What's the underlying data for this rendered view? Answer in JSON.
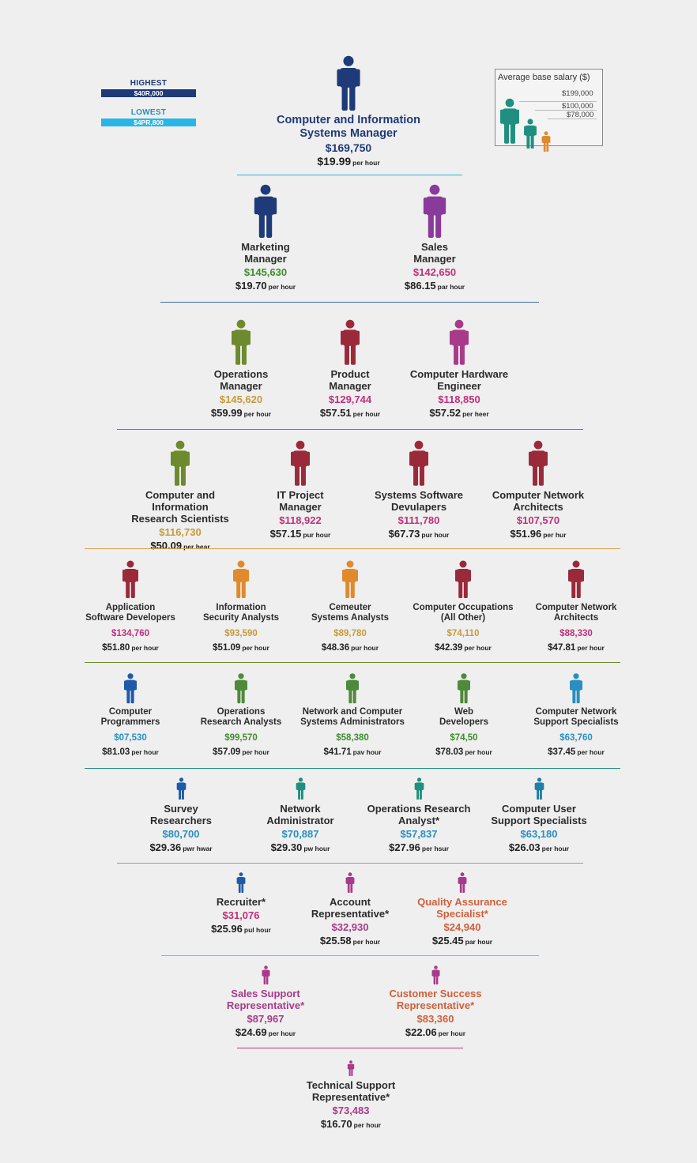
{
  "legend": {
    "highest_label": "HIGHEST",
    "highest_value": "$40R,000",
    "highest_color": "#1f3a78",
    "lowest_label": "LOWEST",
    "lowest_value": "$4PR,800",
    "lowest_color": "#29b6e6",
    "box_title": "Average base salary ($)",
    "box_values": [
      "$199,000",
      "$100,000",
      "$78,000"
    ],
    "box_colors": [
      "#1f8f7f",
      "#1f8f7f",
      "#e08a2e"
    ]
  },
  "top": {
    "title_line1": "Computer and Information",
    "title_line2": "Systems Manager",
    "salary": "$169,750",
    "hourly": "$19.99",
    "unit": "per hour",
    "color": "#1f3a78"
  },
  "rows": [
    {
      "divider_color": "#3f6aa8",
      "jobs": [
        {
          "t1": "Marketing",
          "t2": "Manager",
          "salary": "$145,630",
          "hourly": "$19.70",
          "unit": "per hour",
          "icon_color": "#1f3a78",
          "salary_color": "#3e8e2e"
        },
        {
          "t1": "Sales",
          "t2": "Manager",
          "salary": "$142,650",
          "hourly": "$86.15",
          "unit": "par hour",
          "icon_color": "#8a3a9a",
          "salary_color": "#c0307a"
        }
      ]
    },
    {
      "divider_color": "#6e8a2e",
      "jobs": [
        {
          "t1": "Operations",
          "t2": "Manager",
          "salary": "$145,620",
          "hourly": "$59.99",
          "unit": "per hour",
          "icon_color": "#6e8a2e",
          "salary_color": "#c89a3a"
        },
        {
          "t1": "Product",
          "t2": "Manager",
          "salary": "$129,744",
          "hourly": "$57.51",
          "unit": "per hour",
          "icon_color": "#9a2a3a",
          "salary_color": "#c0307a"
        },
        {
          "t1": "Computer Hardware",
          "t2": "Engineer",
          "salary": "$118,850",
          "hourly": "$57.52",
          "unit": "per heer",
          "icon_color": "#a83a8a",
          "salary_color": "#c0307a"
        }
      ]
    },
    {
      "divider_color": "#d8a050",
      "jobs": [
        {
          "t1": "Computer and Information",
          "t2": "Research Scientists",
          "salary": "$116,730",
          "hourly": "$50.09",
          "unit": "per hear",
          "icon_color": "#6e8a2e",
          "salary_color": "#c89a3a"
        },
        {
          "t1": "IT Project",
          "t2": "Manager",
          "salary": "$118,922",
          "hourly": "$57.15",
          "unit": "pur hour",
          "icon_color": "#9a2a3a",
          "salary_color": "#c0307a"
        },
        {
          "t1": "Systems Software",
          "t2": "Devulapers",
          "salary": "$111,780",
          "hourly": "$67.73",
          "unit": "pur hour",
          "icon_color": "#9a2a3a",
          "salary_color": "#c0307a"
        },
        {
          "t1": "Computer Network",
          "t2": "Architects",
          "salary": "$107,570",
          "hourly": "$51.96",
          "unit": "per hur",
          "icon_color": "#9a2a3a",
          "salary_color": "#c0307a"
        }
      ]
    },
    {
      "divider_color": "#6e8a2e",
      "small": true,
      "jobs": [
        {
          "t1": "Application",
          "t2": "Software Developers",
          "salary": "$134,760",
          "hourly": "$51.80",
          "unit": "per hour",
          "icon_color": "#9a2a3a",
          "salary_color": "#c0307a"
        },
        {
          "t1": "Information",
          "t2": "Security Analysts",
          "salary": "$93,590",
          "hourly": "$51.09",
          "unit": "per hour",
          "icon_color": "#e08a2e",
          "salary_color": "#c89a3a"
        },
        {
          "t1": "Cemeuter",
          "t2": "Systems Analysts",
          "salary": "$89,780",
          "hourly": "$48.36",
          "unit": "pur hour",
          "icon_color": "#e08a2e",
          "salary_color": "#c89a3a"
        },
        {
          "t1": "Computer Occupations",
          "t2": "(All Other)",
          "salary": "$74,110",
          "hourly": "$42.39",
          "unit": "per hour",
          "icon_color": "#9a2a3a",
          "salary_color": "#c89a3a"
        },
        {
          "t1": "Computer Network",
          "t2": "Architects",
          "salary": "$88,330",
          "hourly": "$47.81",
          "unit": "per hour",
          "icon_color": "#9a2a3a",
          "salary_color": "#c0307a"
        }
      ]
    },
    {
      "divider_color": "#1f8f7f",
      "small": true,
      "jobs": [
        {
          "t1": "Computer",
          "t2": "Programmers",
          "salary": "$07,530",
          "hourly": "$81.03",
          "unit": "per hour",
          "icon_color": "#1f5aa8",
          "salary_color": "#2a8fc0"
        },
        {
          "t1": "Operations",
          "t2": "Research Analysts",
          "salary": "$99,570",
          "hourly": "$57.09",
          "unit": "per hour",
          "icon_color": "#4e8a3a",
          "salary_color": "#3e8e2e"
        },
        {
          "t1": "Network and Computer",
          "t2": "Systems Administrators",
          "salary": "$58,380",
          "hourly": "$41.71",
          "unit": "pav hour",
          "icon_color": "#4e8a3a",
          "salary_color": "#3e8e2e"
        },
        {
          "t1": "Web",
          "t2": "Developers",
          "salary": "$74,50",
          "hourly": "$78.03",
          "unit": "per hour",
          "icon_color": "#4e8a3a",
          "salary_color": "#3e8e2e"
        },
        {
          "t1": "Computer Network",
          "t2": "Support Specialists",
          "salary": "$63,760",
          "hourly": "$37.45",
          "unit": "per hour",
          "icon_color": "#2a8fc0",
          "salary_color": "#2a8fc0"
        }
      ]
    },
    {
      "divider_color": "#999999",
      "jobs": [
        {
          "t1": "Survey",
          "t2": "Researchers",
          "salary": "$80,700",
          "hourly": "$29.36",
          "unit": "pwr hwar",
          "icon_color": "#1f5aa8",
          "salary_color": "#2a8fc0"
        },
        {
          "t1": "Network",
          "t2": "Administrator",
          "salary": "$70,887",
          "hourly": "$29.30",
          "unit": "pw hour",
          "icon_color": "#1f8f7f",
          "salary_color": "#2a8fc0"
        },
        {
          "t1": "Operations Research",
          "t2": "Analyst*",
          "salary": "$57,837",
          "hourly": "$27.96",
          "unit": "per hsur",
          "icon_color": "#1f8f7f",
          "salary_color": "#2a8fc0"
        },
        {
          "t1": "Computer User",
          "t2": "Support Specialists",
          "salary": "$63,180",
          "hourly": "$26.03",
          "unit": "per hour",
          "icon_color": "#1f7fa8",
          "salary_color": "#2a8fc0"
        }
      ]
    },
    {
      "divider_color": "#e0a060",
      "jobs": [
        {
          "t1": "Recruiter*",
          "t2": "",
          "salary": "$31,076",
          "hourly": "$25.96",
          "unit": "pul hour",
          "icon_color": "#1f5aa8",
          "salary_color": "#c0307a",
          "title_color": "#2b2b2b"
        },
        {
          "t1": "Account",
          "t2": "Representative*",
          "salary": "$32,930",
          "hourly": "$25.58",
          "unit": "per hour",
          "icon_color": "#a83a8a",
          "salary_color": "#a83a8a",
          "title_color": "#2b2b2b"
        },
        {
          "t1": "Quality Assurance",
          "t2": "Specialist*",
          "salary": "$24,940",
          "hourly": "$25.45",
          "unit": "par hour",
          "icon_color": "#a83a8a",
          "salary_color": "#d0603a",
          "title_color": "#d0603a"
        }
      ]
    },
    {
      "divider_color": "#c0307a",
      "jobs": [
        {
          "t1": "Sales Support",
          "t2": "Representative*",
          "salary": "$87,967",
          "hourly": "$24.69",
          "unit": "per hour",
          "icon_color": "#a83a8a",
          "salary_color": "#a83a8a",
          "title_color": "#a83a8a"
        },
        {
          "t1": "Customer Success",
          "t2": "Representative*",
          "salary": "$83,360",
          "hourly": "$22.06",
          "unit": "per hour",
          "icon_color": "#a83a8a",
          "salary_color": "#d0603a",
          "title_color": "#d0603a"
        }
      ]
    },
    {
      "jobs": [
        {
          "t1": "Technical Support",
          "t2": "Representative*",
          "salary": "$73,483",
          "hourly": "$16.70",
          "unit": "per hour",
          "icon_color": "#a83a8a",
          "salary_color": "#a83a8a",
          "title_color": "#2b2b2b"
        }
      ]
    }
  ]
}
